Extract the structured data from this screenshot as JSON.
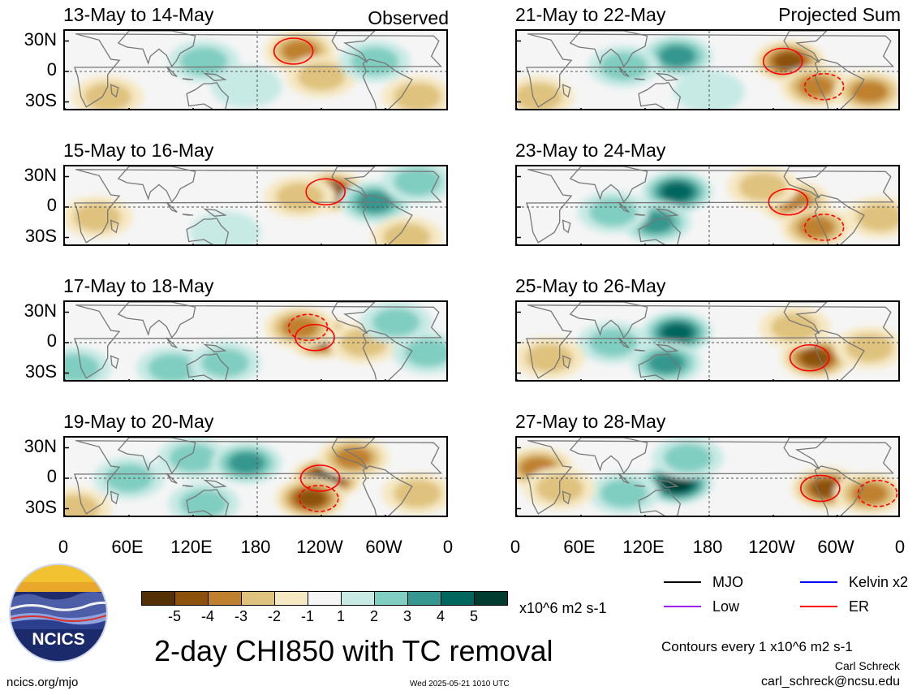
{
  "figure": {
    "main_title": "2-day CHI850 with TC removal",
    "units": "x10^6 m2 s-1",
    "contour_note": "Contours every 1 x10^6 m2 s-1",
    "author": "Carl Schreck",
    "email": "carl_schreck@ncsu.edu",
    "website": "ncics.org/mjo",
    "timestamp": "Wed 2025-05-21 1010 UTC",
    "logo_text": "NCICS",
    "left_column_tag": "Observed",
    "right_column_tag": "Projected Sum"
  },
  "colors": {
    "neg5": "#543005",
    "neg4": "#8c510a",
    "neg3": "#bf812d",
    "neg2": "#dfc27d",
    "neg1": "#f6e8c3",
    "zero": "#f5f5f5",
    "pos1": "#c7eae5",
    "pos2": "#80cdc1",
    "pos3": "#35978f",
    "pos4": "#01665e",
    "pos5": "#003c30",
    "mjo": "#000000",
    "kelvin": "#0000ff",
    "low": "#a020f0",
    "er": "#ff0000"
  },
  "legend": [
    {
      "label": "MJO",
      "color": "#000000"
    },
    {
      "label": "Kelvin x2",
      "color": "#0000ff"
    },
    {
      "label": "Low",
      "color": "#a020f0"
    },
    {
      "label": "ER",
      "color": "#ff0000"
    }
  ],
  "colorbar_ticks": [
    "-5",
    "-4",
    "-3",
    "-2",
    "-1",
    "1",
    "2",
    "3",
    "4",
    "5"
  ],
  "chart_data": {
    "type": "heatmap",
    "variable": "2-day CHI850 with TC removal",
    "units": "x10^6 m2 s-1",
    "x_ticks": [
      "0",
      "60E",
      "120E",
      "180",
      "120W",
      "60W",
      "0"
    ],
    "y_ticks": [
      "30N",
      "0",
      "30S"
    ],
    "xlim": [
      0,
      360
    ],
    "ylim": [
      -40,
      40
    ],
    "color_levels": [
      -5,
      -4,
      -3,
      -2,
      -1,
      1,
      2,
      3,
      4,
      5
    ],
    "panels": [
      {
        "title": "13-May to 14-May",
        "column": "Observed",
        "blobs": [
          {
            "lon": 220,
            "lat": 20,
            "value": -2.5
          },
          {
            "lon": 240,
            "lat": -5,
            "value": -2
          },
          {
            "lon": 290,
            "lat": 10,
            "value": 2
          },
          {
            "lon": 40,
            "lat": -25,
            "value": -1.5
          },
          {
            "lon": 130,
            "lat": 10,
            "value": 1.5
          },
          {
            "lon": 170,
            "lat": -15,
            "value": 1.2
          },
          {
            "lon": 330,
            "lat": -25,
            "value": -1.5
          }
        ]
      },
      {
        "title": "15-May to 16-May",
        "column": "Observed",
        "blobs": [
          {
            "lon": 250,
            "lat": 15,
            "value": -3.5
          },
          {
            "lon": 220,
            "lat": 10,
            "value": -2
          },
          {
            "lon": 290,
            "lat": 5,
            "value": 3
          },
          {
            "lon": 330,
            "lat": 25,
            "value": 2
          },
          {
            "lon": 30,
            "lat": -10,
            "value": -1.5
          },
          {
            "lon": 320,
            "lat": -30,
            "value": -2
          },
          {
            "lon": 150,
            "lat": -25,
            "value": 1.2
          }
        ]
      },
      {
        "title": "17-May to 18-May",
        "column": "Observed",
        "blobs": [
          {
            "lon": 240,
            "lat": 5,
            "value": -4.5
          },
          {
            "lon": 220,
            "lat": 15,
            "value": -3
          },
          {
            "lon": 280,
            "lat": 0,
            "value": -2
          },
          {
            "lon": 310,
            "lat": 20,
            "value": 2
          },
          {
            "lon": 100,
            "lat": -25,
            "value": 1.5
          },
          {
            "lon": 150,
            "lat": -20,
            "value": 1.5
          },
          {
            "lon": 10,
            "lat": -25,
            "value": 1.5
          },
          {
            "lon": 340,
            "lat": -10,
            "value": 1.5
          }
        ]
      },
      {
        "title": "19-May to 20-May",
        "column": "Observed",
        "blobs": [
          {
            "lon": 245,
            "lat": 0,
            "value": -5
          },
          {
            "lon": 230,
            "lat": -20,
            "value": -3.5
          },
          {
            "lon": 270,
            "lat": 20,
            "value": -3
          },
          {
            "lon": 330,
            "lat": -15,
            "value": -2
          },
          {
            "lon": 120,
            "lat": 20,
            "value": 2
          },
          {
            "lon": 170,
            "lat": 15,
            "value": 3
          },
          {
            "lon": 60,
            "lat": 0,
            "value": 2
          },
          {
            "lon": 130,
            "lat": -25,
            "value": 2
          },
          {
            "lon": 10,
            "lat": -30,
            "value": -2
          }
        ]
      },
      {
        "title": "21-May to 22-May",
        "column": "Projected Sum",
        "blobs": [
          {
            "lon": 255,
            "lat": 10,
            "value": -4
          },
          {
            "lon": 280,
            "lat": -15,
            "value": -3
          },
          {
            "lon": 330,
            "lat": -20,
            "value": -2.5
          },
          {
            "lon": 150,
            "lat": 15,
            "value": 2.5
          },
          {
            "lon": 100,
            "lat": 5,
            "value": 1.5
          },
          {
            "lon": 180,
            "lat": -20,
            "value": 1.2
          },
          {
            "lon": 20,
            "lat": -25,
            "value": -1.5
          }
        ]
      },
      {
        "title": "23-May to 24-May",
        "column": "Projected Sum",
        "blobs": [
          {
            "lon": 150,
            "lat": 15,
            "value": 4
          },
          {
            "lon": 130,
            "lat": -15,
            "value": 2.5
          },
          {
            "lon": 90,
            "lat": -5,
            "value": 1.5
          },
          {
            "lon": 260,
            "lat": 5,
            "value": -3
          },
          {
            "lon": 280,
            "lat": -20,
            "value": -3
          },
          {
            "lon": 230,
            "lat": 20,
            "value": -1.5
          },
          {
            "lon": 340,
            "lat": -10,
            "value": -1.5
          }
        ]
      },
      {
        "title": "25-May to 26-May",
        "column": "Projected Sum",
        "blobs": [
          {
            "lon": 150,
            "lat": 10,
            "value": 4
          },
          {
            "lon": 140,
            "lat": -20,
            "value": 2.5
          },
          {
            "lon": 90,
            "lat": 0,
            "value": 1.5
          },
          {
            "lon": 280,
            "lat": -15,
            "value": -4
          },
          {
            "lon": 260,
            "lat": 15,
            "value": -2
          },
          {
            "lon": 330,
            "lat": -5,
            "value": -1.5
          },
          {
            "lon": 30,
            "lat": -15,
            "value": -1.5
          }
        ]
      },
      {
        "title": "27-May to 28-May",
        "column": "Projected Sum",
        "blobs": [
          {
            "lon": 150,
            "lat": -5,
            "value": 4.5
          },
          {
            "lon": 160,
            "lat": 20,
            "value": 2
          },
          {
            "lon": 100,
            "lat": -15,
            "value": 2
          },
          {
            "lon": 290,
            "lat": -10,
            "value": -4
          },
          {
            "lon": 330,
            "lat": -15,
            "value": -2.5
          },
          {
            "lon": 20,
            "lat": 10,
            "value": -2.5
          },
          {
            "lon": 40,
            "lat": -10,
            "value": -1.5
          }
        ]
      }
    ]
  }
}
